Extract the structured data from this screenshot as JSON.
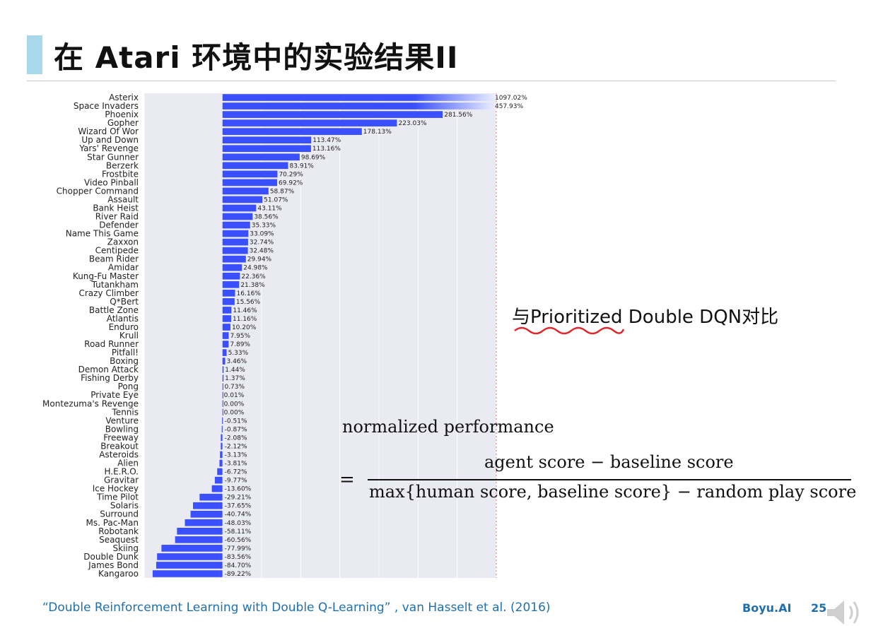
{
  "slide": {
    "title": "在 Atari 环境中的实验结果II",
    "note": "与Prioritized Double DQN对比",
    "formula": {
      "lhs": "normalized performance",
      "eq": "=",
      "numerator": "agent score  − baseline score",
      "denominator": "max{human score, baseline score}  − random play score"
    },
    "footer": {
      "citation": "“Double Reinforcement Learning with Double Q-Learning” , van Hasselt et al. (2016)",
      "brand": "Boyu.AI",
      "page": "25"
    },
    "colors": {
      "bar": "#3a4fff",
      "title_accent": "#a8d8ea",
      "footer_text": "#1f6fb0",
      "note_underline": "#e0262a"
    },
    "icons": [
      "speaker-icon"
    ]
  },
  "chart_data": {
    "type": "bar",
    "orientation": "horizontal",
    "value_unit": "%",
    "grid": true,
    "categories": [
      "Asterix",
      "Space Invaders",
      "Phoenix",
      "Gopher",
      "Wizard Of Wor",
      "Up and Down",
      "Yars' Revenge",
      "Star Gunner",
      "Berzerk",
      "Frostbite",
      "Video Pinball",
      "Chopper Command",
      "Assault",
      "Bank Heist",
      "River Raid",
      "Defender",
      "Name This Game",
      "Zaxxon",
      "Centipede",
      "Beam Rider",
      "Amidar",
      "Kung-Fu Master",
      "Tutankham",
      "Crazy Climber",
      "Q*Bert",
      "Battle Zone",
      "Atlantis",
      "Enduro",
      "Krull",
      "Road Runner",
      "Pitfall!",
      "Boxing",
      "Demon Attack",
      "Fishing Derby",
      "Pong",
      "Private Eye",
      "Montezuma's Revenge",
      "Tennis",
      "Venture",
      "Bowling",
      "Freeway",
      "Breakout",
      "Asteroids",
      "Alien",
      "H.E.R.O.",
      "Gravitar",
      "Ice Hockey",
      "Time Pilot",
      "Solaris",
      "Surround",
      "Ms. Pac-Man",
      "Robotank",
      "Seaquest",
      "Skiing",
      "Double Dunk",
      "James Bond",
      "Kangaroo"
    ],
    "values": [
      1097.02,
      457.93,
      281.56,
      223.03,
      178.13,
      113.47,
      113.16,
      98.69,
      83.91,
      70.29,
      69.92,
      58.87,
      51.07,
      43.11,
      38.56,
      35.33,
      33.09,
      32.74,
      32.48,
      29.94,
      24.98,
      22.36,
      21.38,
      16.16,
      15.56,
      11.46,
      11.16,
      10.2,
      7.95,
      7.89,
      5.33,
      3.46,
      1.44,
      1.37,
      0.73,
      0.01,
      0.0,
      0.0,
      -0.51,
      -0.87,
      -2.08,
      -2.12,
      -3.13,
      -3.81,
      -6.72,
      -9.77,
      -13.6,
      -29.21,
      -37.65,
      -40.74,
      -48.03,
      -58.11,
      -60.56,
      -77.99,
      -83.56,
      -84.7,
      -89.22
    ],
    "value_labels": [
      "1097.02%",
      "457.93%",
      "281.56%",
      "223.03%",
      "178.13%",
      "113.47%",
      "113.16%",
      "98.69%",
      "83.91%",
      "70.29%",
      "69.92%",
      "58.87%",
      "51.07%",
      "43.11%",
      "38.56%",
      "35.33%",
      "33.09%",
      "32.74%",
      "32.48%",
      "29.94%",
      "24.98%",
      "22.36%",
      "21.38%",
      "16.16%",
      "15.56%",
      "11.46%",
      "11.16%",
      "10.20%",
      "7.95%",
      "7.89%",
      "5.33%",
      "3.46%",
      "1.44%",
      "1.37%",
      "0.73%",
      "0.01%",
      "0.00%",
      "0.00%",
      "-0.51%",
      "-0.87%",
      "-2.08%",
      "-2.12%",
      "-3.13%",
      "-3.81%",
      "-6.72%",
      "-9.77%",
      "-13.60%",
      "-29.21%",
      "-37.65%",
      "-40.74%",
      "-48.03%",
      "-58.11%",
      "-60.56%",
      "-77.99%",
      "-83.56%",
      "-84.70%",
      "-89.22%"
    ],
    "xlim": [
      -100,
      350
    ],
    "gridlines_x": [
      -100,
      0,
      50,
      100,
      150,
      200,
      250,
      300,
      350
    ]
  }
}
